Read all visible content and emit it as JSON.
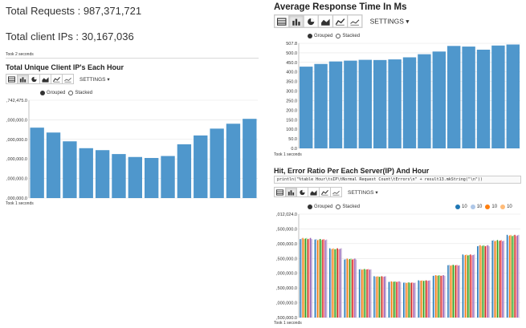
{
  "left": {
    "total_requests": "Total Requests : 987,371,721",
    "total_client_ips": "Total client IPs : 30,167,036",
    "took_top": "Took 2 seconds",
    "unique_ip_title": "Total Unique Client IP's Each Hour",
    "settings_label": "SETTINGS",
    "grouped_label": "Grouped",
    "stacked_label": "Stacked",
    "took_bottom": "Took 1 seconds"
  },
  "right": {
    "response_title": "Average Response Time In Ms",
    "settings_label": "SETTINGS",
    "grouped_label": "Grouped",
    "stacked_label": "Stacked",
    "took_response": "Took 1 seconds",
    "hit_title": "Hit, Error Ratio Per Each Server(IP) And Hour",
    "code_text": "println(\"%table Hour\\tsIP\\tNormal Request Count\\tErrors\\n\" + result13.mkString(\"\\n\"))",
    "hit_settings_label": "SETTINGS",
    "hit_grouped_label": "Grouped",
    "hit_stacked_label": "Stacked",
    "took_hit": "Took 1 seconds",
    "legend": [
      {
        "label": "10",
        "color": "#1f77b4"
      },
      {
        "label": "10",
        "color": "#aec7e8"
      },
      {
        "label": "10",
        "color": "#ff7f0e"
      },
      {
        "label": "10",
        "color": "#ffbb78"
      }
    ]
  },
  "toolbar_icons": [
    "table-icon",
    "bar-chart-icon",
    "pie-chart-icon",
    "area-chart-icon",
    "line-chart-icon",
    "scatter-chart-icon"
  ],
  "colors": {
    "bar_blue": "#4f97cc",
    "hit_series": [
      "#1f77b4",
      "#aec7e8",
      "#ff7f0e",
      "#ffbb78",
      "#2ca02c",
      "#98df8a",
      "#d62728",
      "#ff9896",
      "#9467bd",
      "#c5b0d5"
    ]
  },
  "chart_data": [
    {
      "type": "bar",
      "title": "Total Unique Client IP's Each Hour",
      "y_ticks": [
        ",742,475.0",
        ",000,000.0",
        ",000,000.0",
        ",000,000.0",
        ",000,000.0",
        ",000,000.0"
      ],
      "ylim": [
        0,
        1
      ],
      "values": [
        0.72,
        0.67,
        0.58,
        0.51,
        0.49,
        0.45,
        0.42,
        0.41,
        0.43,
        0.55,
        0.64,
        0.71,
        0.76,
        0.81
      ]
    },
    {
      "type": "bar",
      "title": "Average Response Time In Ms",
      "y_ticks": [
        "507.8",
        "500.0",
        "450.0",
        "400.0",
        "350.0",
        "300.0",
        "250.0",
        "200.0",
        "150.0",
        "100.0",
        "50.0",
        "0.0"
      ],
      "ylim": [
        0,
        507.8
      ],
      "values": [
        395,
        408,
        420,
        424,
        428,
        427,
        430,
        440,
        455,
        468,
        495,
        492,
        477,
        497,
        502
      ]
    },
    {
      "type": "bar",
      "title": "Hit, Error Ratio Per Each Server(IP) And Hour",
      "y_ticks": [
        ",012,024.0",
        ",500,000.0",
        ",000,000.0",
        ",500,000.0",
        ",000,000.0",
        ",500,000.0",
        ",000,000.0",
        ",500,000.0"
      ],
      "ylim": [
        0,
        1
      ],
      "series_count": 10,
      "values": [
        0.77,
        0.76,
        0.67,
        0.57,
        0.47,
        0.4,
        0.35,
        0.34,
        0.36,
        0.41,
        0.51,
        0.61,
        0.7,
        0.75,
        0.8
      ]
    }
  ]
}
